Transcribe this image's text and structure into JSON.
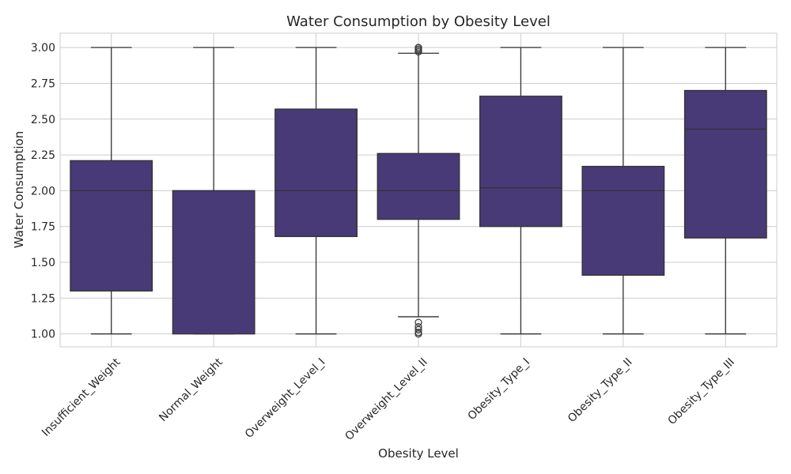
{
  "chart_data": {
    "type": "box",
    "title": "Water Consumption by Obesity Level",
    "xlabel": "Obesity Level",
    "ylabel": "Water Consumption",
    "ylim": [
      0.91,
      3.1
    ],
    "yticks": [
      1.0,
      1.25,
      1.5,
      1.75,
      2.0,
      2.25,
      2.5,
      2.75,
      3.0
    ],
    "ytick_labels": [
      "1.00",
      "1.25",
      "1.50",
      "1.75",
      "2.00",
      "2.25",
      "2.50",
      "2.75",
      "3.00"
    ],
    "grid": true,
    "box_color": "#483a76",
    "categories": [
      "Insufficient_Weight",
      "Normal_Weight",
      "Overweight_Level_I",
      "Overweight_Level_II",
      "Obesity_Type_I",
      "Obesity_Type_II",
      "Obesity_Type_III"
    ],
    "boxes": [
      {
        "whisker_low": 1.0,
        "q1": 1.3,
        "median": 2.0,
        "q3": 2.21,
        "whisker_high": 3.0,
        "outliers": []
      },
      {
        "whisker_low": 1.0,
        "q1": 1.0,
        "median": 2.0,
        "q3": 2.0,
        "whisker_high": 3.0,
        "outliers": []
      },
      {
        "whisker_low": 1.0,
        "q1": 1.68,
        "median": 2.0,
        "q3": 2.57,
        "whisker_high": 3.0,
        "outliers": []
      },
      {
        "whisker_low": 1.12,
        "q1": 1.8,
        "median": 2.0,
        "q3": 2.26,
        "whisker_high": 2.96,
        "outliers": [
          1.0,
          1.01,
          1.03,
          1.05,
          1.08,
          2.97,
          2.98,
          2.99,
          3.0
        ]
      },
      {
        "whisker_low": 1.0,
        "q1": 1.75,
        "median": 2.02,
        "q3": 2.66,
        "whisker_high": 3.0,
        "outliers": []
      },
      {
        "whisker_low": 1.0,
        "q1": 1.41,
        "median": 2.0,
        "q3": 2.17,
        "whisker_high": 3.0,
        "outliers": []
      },
      {
        "whisker_low": 1.0,
        "q1": 1.67,
        "median": 2.43,
        "q3": 2.7,
        "whisker_high": 3.0,
        "outliers": []
      }
    ]
  }
}
